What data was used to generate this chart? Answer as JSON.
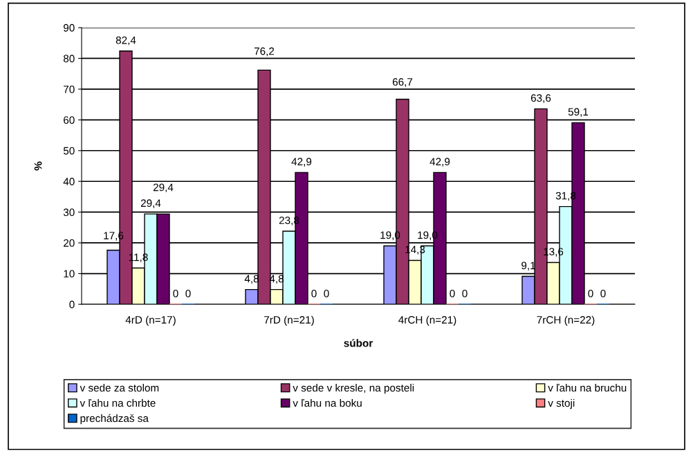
{
  "chart_data": {
    "type": "bar",
    "xlabel": "súbor",
    "ylabel": "%",
    "categories": [
      "4rD (n=17)",
      "7rD (n=21)",
      "4rCH (n=21)",
      "7rCH (n=22)"
    ],
    "series": [
      {
        "name": "v sede za stolom",
        "color": "#9999ff",
        "values": [
          17.6,
          4.8,
          19.0,
          9.1
        ],
        "value_labels": [
          "17,6",
          "4,8",
          "19,0",
          "9,1"
        ]
      },
      {
        "name": "v sede v kresle, na posteli",
        "color": "#993366",
        "values": [
          82.4,
          76.2,
          66.7,
          63.6
        ],
        "value_labels": [
          "82,4",
          "76,2",
          "66,7",
          "63,6"
        ]
      },
      {
        "name": "v ľahu na bruchu",
        "color": "#ffffcc",
        "values": [
          11.8,
          4.8,
          14.3,
          13.6
        ],
        "value_labels": [
          "11,8",
          "4,8",
          "14,3",
          "13,6"
        ]
      },
      {
        "name": "v ľahu na chrbte",
        "color": "#ccffff",
        "values": [
          29.4,
          23.8,
          19.0,
          31.8
        ],
        "value_labels": [
          "29,4",
          "23,8",
          "19,0",
          "31,8"
        ]
      },
      {
        "name": "v ľahu na boku",
        "color": "#660066",
        "values": [
          29.4,
          42.9,
          42.9,
          59.1
        ],
        "value_labels": [
          "29,4",
          "42,9",
          "42,9",
          "59,1"
        ]
      },
      {
        "name": "v stoji",
        "color": "#ff8080",
        "values": [
          0,
          0,
          0,
          0
        ],
        "value_labels": [
          "0",
          "0",
          "0",
          "0"
        ]
      },
      {
        "name": "prechádzaš sa",
        "color": "#0066cc",
        "values": [
          0,
          0,
          0,
          0
        ],
        "value_labels": [
          "0",
          "0",
          "0",
          "0"
        ]
      }
    ],
    "ylim": [
      0,
      90
    ],
    "yticks": [
      0,
      10,
      20,
      30,
      40,
      50,
      60,
      70,
      80,
      90
    ],
    "grid": "y",
    "legend": "bottom"
  }
}
